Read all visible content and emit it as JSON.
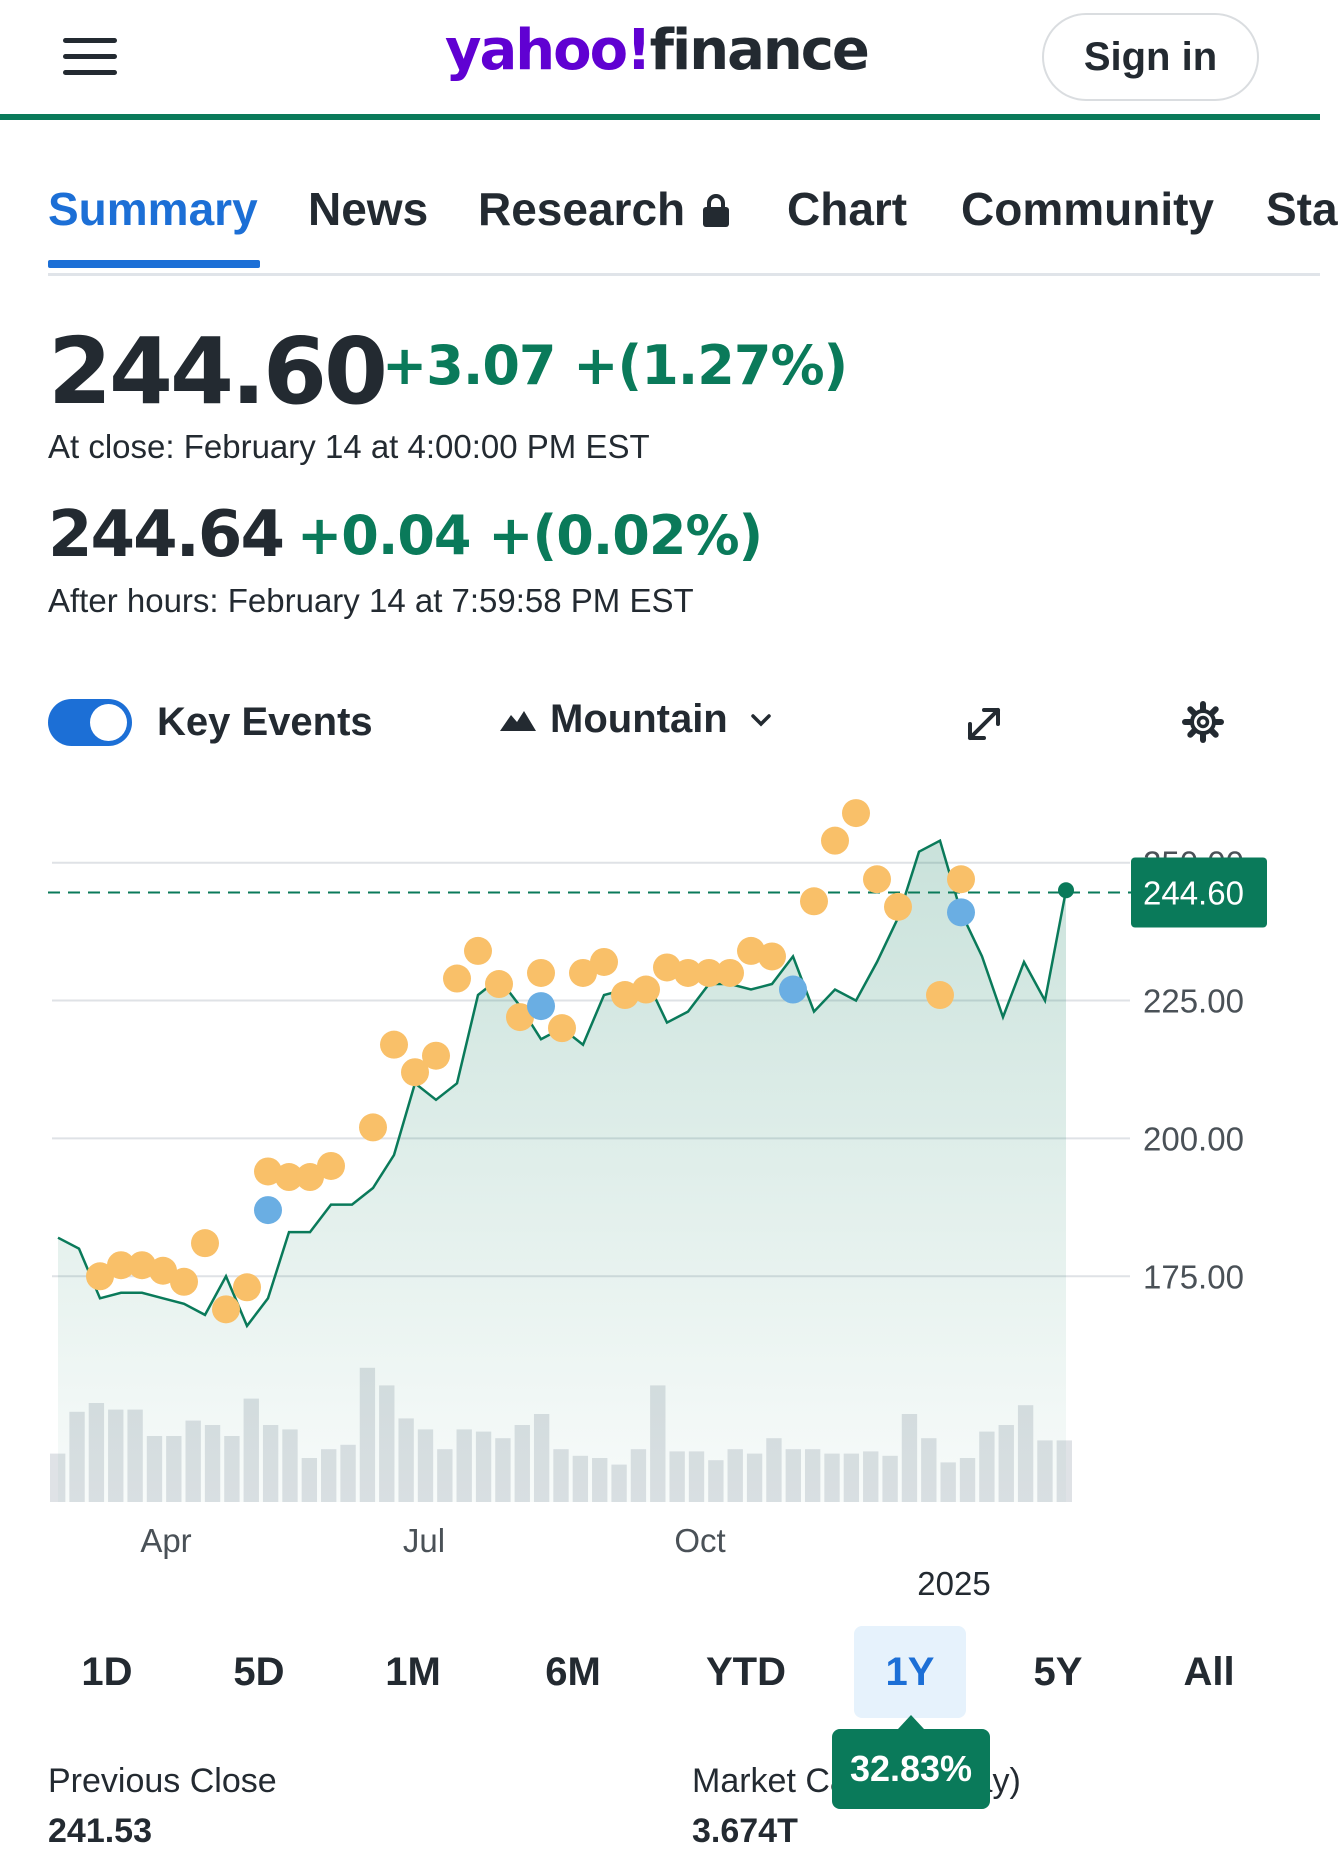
{
  "header": {
    "logo_yahoo": "yahoo!",
    "logo_finance": "finance",
    "sign_in": "Sign in"
  },
  "tabs": [
    {
      "label": "Summary",
      "active": true
    },
    {
      "label": "News"
    },
    {
      "label": "Research",
      "locked": true
    },
    {
      "label": "Chart"
    },
    {
      "label": "Community"
    },
    {
      "label": "Sta"
    }
  ],
  "quote": {
    "price": "244.60",
    "change": "+3.07 +(1.27%)",
    "close_note": "At close: February 14 at 4:00:00 PM EST",
    "after_price": "244.64",
    "after_change": "+0.04 +(0.02%)",
    "after_note": "After hours: February 14 at 7:59:58 PM EST"
  },
  "controls": {
    "key_events": "Key Events",
    "key_events_on": true,
    "chart_type": "Mountain"
  },
  "chart_data": {
    "type": "area",
    "ylim": [
      158,
      265
    ],
    "yticks": [
      "250.00",
      "225.00",
      "200.00",
      "175.00"
    ],
    "ytick_values": [
      250,
      225,
      200,
      175
    ],
    "xtick_labels": [
      "Apr",
      "Jul",
      "Oct"
    ],
    "year_label": "2025",
    "current_price": 244.6,
    "current_label": "244.60",
    "line_color": "#0a7a5a",
    "series": [
      {
        "values": [
          182,
          180,
          171,
          172,
          172,
          171,
          170,
          168,
          175,
          166,
          171,
          183,
          183,
          188,
          188,
          191,
          197,
          210,
          207,
          210,
          226,
          229,
          224,
          218,
          220,
          217,
          226,
          227,
          229,
          221,
          223,
          228,
          228,
          227,
          228,
          233,
          223,
          227,
          225,
          232,
          240,
          252,
          254,
          241,
          233,
          222,
          232,
          225,
          245
        ]
      }
    ],
    "volume": [
      0.22,
      0.41,
      0.45,
      0.42,
      0.42,
      0.3,
      0.3,
      0.37,
      0.35,
      0.3,
      0.47,
      0.35,
      0.33,
      0.2,
      0.24,
      0.26,
      0.61,
      0.53,
      0.38,
      0.33,
      0.24,
      0.33,
      0.32,
      0.29,
      0.35,
      0.4,
      0.24,
      0.21,
      0.2,
      0.17,
      0.24,
      0.53,
      0.23,
      0.23,
      0.19,
      0.24,
      0.22,
      0.29,
      0.24,
      0.24,
      0.22,
      0.22,
      0.23,
      0.21,
      0.4,
      0.29,
      0.18,
      0.2,
      0.32,
      0.35,
      0.44,
      0.28,
      0.28
    ],
    "events_orange": [
      [
        2,
        175
      ],
      [
        3,
        177
      ],
      [
        4,
        177
      ],
      [
        5,
        176
      ],
      [
        6,
        174
      ],
      [
        7,
        181
      ],
      [
        8,
        169
      ],
      [
        9,
        173
      ],
      [
        10,
        194
      ],
      [
        11,
        193
      ],
      [
        12,
        193
      ],
      [
        13,
        195
      ],
      [
        15,
        202
      ],
      [
        16,
        217
      ],
      [
        17,
        212
      ],
      [
        18,
        215
      ],
      [
        19,
        229
      ],
      [
        20,
        234
      ],
      [
        21,
        228
      ],
      [
        22,
        222
      ],
      [
        23,
        230
      ],
      [
        24,
        220
      ],
      [
        25,
        230
      ],
      [
        26,
        232
      ],
      [
        27,
        226
      ],
      [
        28,
        227
      ],
      [
        29,
        231
      ],
      [
        30,
        230
      ],
      [
        31,
        230
      ],
      [
        32,
        230
      ],
      [
        33,
        234
      ],
      [
        34,
        233
      ],
      [
        36,
        243
      ],
      [
        37,
        254
      ],
      [
        38,
        259
      ],
      [
        39,
        247
      ],
      [
        40,
        242
      ],
      [
        42,
        226
      ],
      [
        43,
        247
      ]
    ],
    "events_blue": [
      [
        10,
        187
      ],
      [
        23,
        224
      ],
      [
        35,
        227
      ],
      [
        43,
        241
      ]
    ]
  },
  "ranges": [
    "1D",
    "5D",
    "1M",
    "6M",
    "YTD",
    "1Y",
    "5Y",
    "All"
  ],
  "active_range": "1Y",
  "range_return": "32.83%",
  "stats": {
    "prev_close_label": "Previous Close",
    "prev_close_value": "241.53",
    "market_cap_label": "Market Cap (intraday)",
    "market_cap_value": "3.674T"
  }
}
